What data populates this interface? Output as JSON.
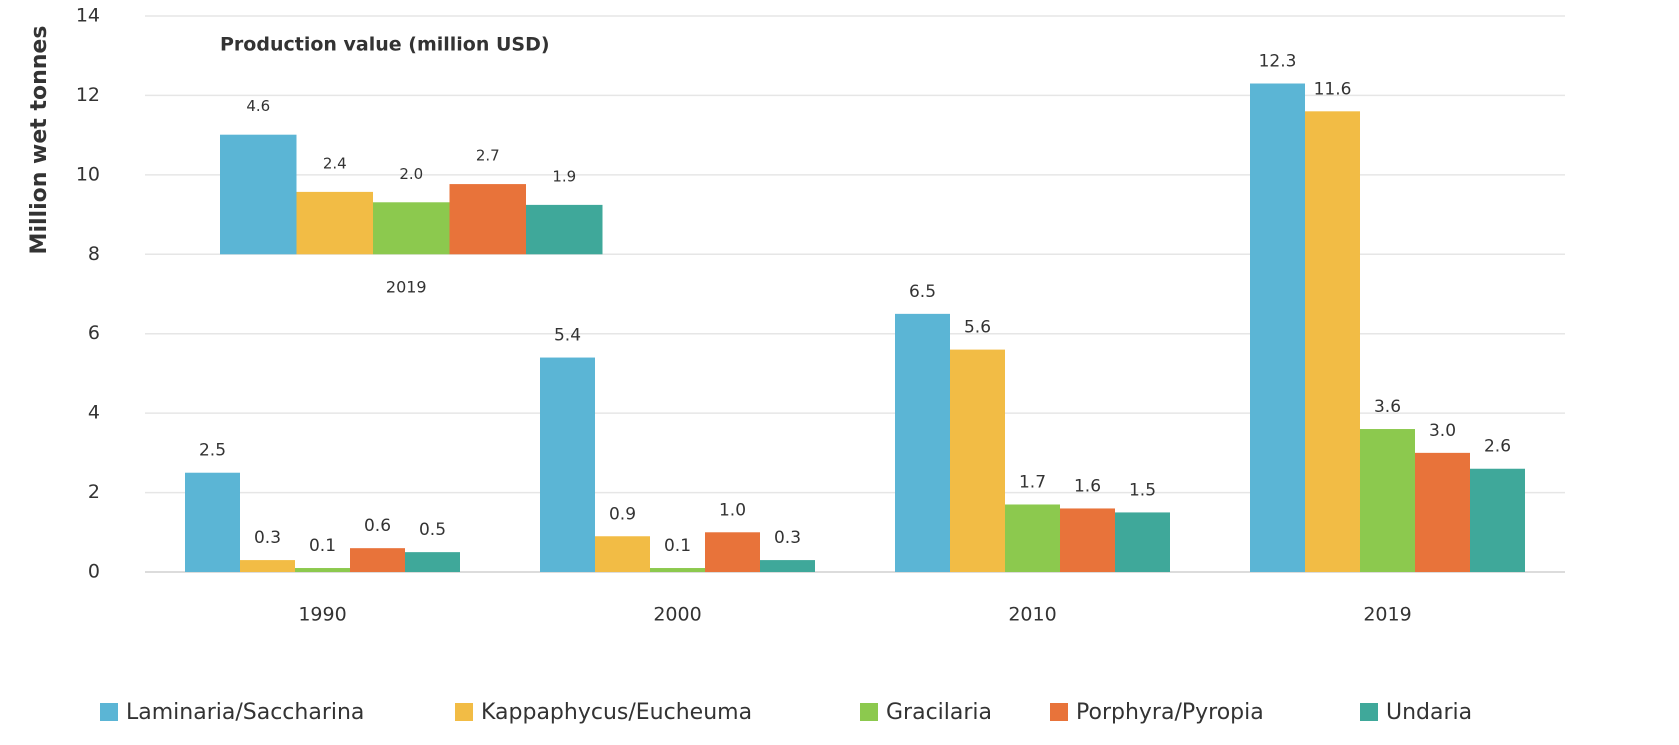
{
  "chart_data": [
    {
      "type": "bar",
      "y_label": "Million wet tonnes",
      "categories": [
        "1990",
        "2000",
        "2010",
        "2019"
      ],
      "series": [
        {
          "name": "Laminaria/Saccharina",
          "color": "#5bb5d5",
          "values": [
            2.5,
            5.4,
            6.5,
            12.3
          ],
          "value_labels": [
            "2.5",
            "5.4",
            "6.5",
            "12.3"
          ]
        },
        {
          "name": "Kappaphycus/Eucheuma",
          "color": "#f2bc45",
          "values": [
            0.3,
            0.9,
            5.6,
            11.6
          ],
          "value_labels": [
            "0.3",
            "0.9",
            "5.6",
            "11.6"
          ]
        },
        {
          "name": "Gracilaria",
          "color": "#8cc94e",
          "values": [
            0.1,
            0.1,
            1.7,
            3.6
          ],
          "value_labels": [
            "0.1",
            "0.1",
            "1.7",
            "3.6"
          ]
        },
        {
          "name": "Porphyra/Pyropia",
          "color": "#e8733a",
          "values": [
            0.6,
            1.0,
            1.6,
            3.0
          ],
          "value_labels": [
            "0.6",
            "1.0",
            "1.6",
            "3.0"
          ]
        },
        {
          "name": "Undaria",
          "color": "#3fa89a",
          "values": [
            0.5,
            0.3,
            1.5,
            2.6
          ],
          "value_labels": [
            "0.5",
            "0.3",
            "1.5",
            "2.6"
          ]
        }
      ],
      "ylim": [
        0,
        14
      ],
      "yticks": [
        0,
        2,
        4,
        6,
        8,
        10,
        12,
        14
      ],
      "grid": true,
      "legend": "bottom"
    },
    {
      "type": "bar",
      "title": "Production value (million USD)",
      "categories": [
        "2019"
      ],
      "series": [
        {
          "values": [
            4.6
          ],
          "value_labels": [
            "4.6"
          ]
        },
        {
          "values": [
            2.4
          ],
          "value_labels": [
            "2.4"
          ]
        },
        {
          "values": [
            2.0
          ],
          "value_labels": [
            "2.0"
          ]
        },
        {
          "values": [
            2.7
          ],
          "value_labels": [
            "2.7"
          ]
        },
        {
          "values": [
            1.9
          ],
          "value_labels": [
            "1.9"
          ]
        }
      ]
    }
  ]
}
